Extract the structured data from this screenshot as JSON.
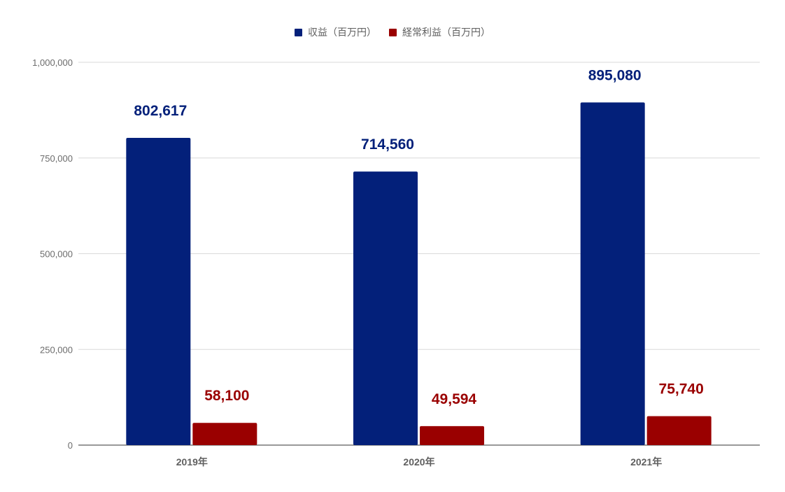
{
  "chart_data": {
    "type": "bar",
    "categories": [
      "2019年",
      "2020年",
      "2021年"
    ],
    "series": [
      {
        "name": "収益（百万円）",
        "values": [
          802617,
          714560,
          895080
        ],
        "labels": [
          "802,617",
          "714,560",
          "895,080"
        ],
        "color": "#03207a"
      },
      {
        "name": "経常利益（百万円）",
        "values": [
          58100,
          49594,
          75740
        ],
        "labels": [
          "58,100",
          "49,594",
          "75,740"
        ],
        "color": "#9a0000"
      }
    ],
    "ylim": [
      0,
      1000000
    ],
    "yticks": [
      0,
      250000,
      500000,
      750000,
      1000000
    ],
    "ytick_labels": [
      "0",
      "250,000",
      "500,000",
      "750,000",
      "1,000,000"
    ],
    "grid": true,
    "legend_position": "top-center",
    "title": "",
    "xlabel": "",
    "ylabel": ""
  }
}
